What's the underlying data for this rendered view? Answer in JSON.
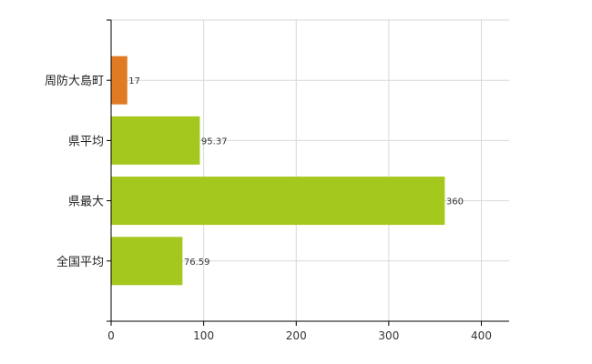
{
  "chart_data": {
    "type": "bar",
    "orientation": "horizontal",
    "categories": [
      "周防大島町",
      "県平均",
      "県最大",
      "全国平均"
    ],
    "values": [
      17,
      95.37,
      360,
      76.59
    ],
    "value_labels": [
      "17",
      "95.37",
      "360",
      "76.59"
    ],
    "bar_colors": [
      "#e07b24",
      "#a5c81e",
      "#a5c81e",
      "#a5c81e"
    ],
    "xlim": [
      0,
      430
    ],
    "x_ticks": [
      0,
      100,
      200,
      300,
      400
    ],
    "x_tick_labels": [
      "0",
      "100",
      "200",
      "300",
      "400"
    ],
    "grid": true,
    "title": "",
    "xlabel": "",
    "ylabel": ""
  }
}
